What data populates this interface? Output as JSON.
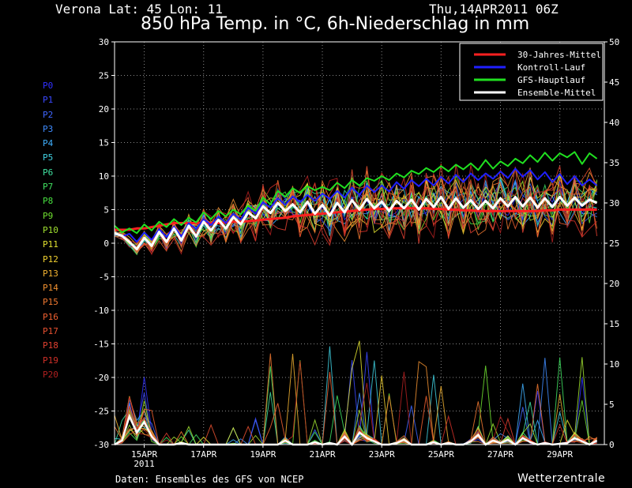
{
  "header": {
    "location": "Verona   Lat: 45 Lon: 11",
    "run": "Thu,14APR2011 06Z",
    "title": "850 hPa Temp. in °C, 6h-Niederschlag in mm"
  },
  "footer": {
    "credit": "Daten: Ensembles des GFS von NCEP",
    "brand": "Wetterzentrale"
  },
  "members": [
    {
      "name": "P0",
      "color": "#3030ff"
    },
    {
      "name": "P1",
      "color": "#3a48ff"
    },
    {
      "name": "P2",
      "color": "#3f66ff"
    },
    {
      "name": "P3",
      "color": "#3f8cff"
    },
    {
      "name": "P4",
      "color": "#3fb0ff"
    },
    {
      "name": "P5",
      "color": "#40d0e0"
    },
    {
      "name": "P6",
      "color": "#40e0a0"
    },
    {
      "name": "P7",
      "color": "#40e060"
    },
    {
      "name": "P8",
      "color": "#48e040"
    },
    {
      "name": "P9",
      "color": "#70e030"
    },
    {
      "name": "P10",
      "color": "#a0e030"
    },
    {
      "name": "P11",
      "color": "#e0e030"
    },
    {
      "name": "P12",
      "color": "#f0d030"
    },
    {
      "name": "P13",
      "color": "#f0b030"
    },
    {
      "name": "P14",
      "color": "#f09030"
    },
    {
      "name": "P15",
      "color": "#f07830"
    },
    {
      "name": "P16",
      "color": "#f06030"
    },
    {
      "name": "P17",
      "color": "#e85030"
    },
    {
      "name": "P18",
      "color": "#e04030"
    },
    {
      "name": "P19",
      "color": "#d03028"
    },
    {
      "name": "P20",
      "color": "#b02020"
    }
  ],
  "chart_data": {
    "type": "line",
    "x_ticks": [
      {
        "label": "15APR",
        "sub": "2011",
        "day": 1
      },
      {
        "label": "17APR",
        "day": 3
      },
      {
        "label": "19APR",
        "day": 5
      },
      {
        "label": "21APR",
        "day": 7
      },
      {
        "label": "23APR",
        "day": 9
      },
      {
        "label": "25APR",
        "day": 11
      },
      {
        "label": "27APR",
        "day": 13
      },
      {
        "label": "29APR",
        "day": 15
      }
    ],
    "x_range_days": [
      0,
      16.5
    ],
    "y_left": {
      "range": [
        -30,
        30
      ],
      "ticks": [
        30,
        25,
        20,
        15,
        10,
        5,
        0,
        -5,
        -10,
        -15,
        -20,
        -25,
        -30
      ]
    },
    "y_right": {
      "range": [
        0,
        50
      ],
      "ticks": [
        50,
        45,
        40,
        35,
        30,
        25,
        20,
        15,
        10,
        5,
        0
      ]
    },
    "grid": true,
    "legend_position": "top-right",
    "legend": [
      {
        "name": "30-Jahres-Mittel",
        "color": "#ff2020"
      },
      {
        "name": "Kontroll-Lauf",
        "color": "#2020ff"
      },
      {
        "name": "GFS-Hauptlauf",
        "color": "#20e020"
      },
      {
        "name": "Ensemble-Mittel",
        "color": "#ffffff"
      }
    ],
    "step_hours": 6,
    "series": [
      {
        "name": "30-Jahres-Mittel",
        "color": "#ff2020",
        "width": 3,
        "values": [
          2,
          2,
          2,
          2.2,
          2.2,
          2.4,
          2.6,
          2.8,
          3,
          3,
          3,
          3,
          3,
          3,
          3,
          3.1,
          3.2,
          3.2,
          3.3,
          3.4,
          3.5,
          3.6,
          3.7,
          3.8,
          4,
          4.1,
          4.2,
          4.3,
          4.4,
          4.5,
          4.6,
          4.7,
          4.8,
          4.9,
          5,
          5.1,
          5.1,
          5.2,
          5.2,
          5.2,
          5.2,
          5.2,
          5.2,
          5.1,
          5.1,
          5.0,
          5.0,
          4.9,
          4.9,
          4.8,
          4.8,
          4.8,
          4.8,
          4.8,
          4.8,
          4.8,
          4.8,
          4.8,
          4.9,
          4.9,
          5.0,
          5.0,
          5.0,
          5.0,
          5.0,
          5.0
        ]
      },
      {
        "name": "GFS-Hauptlauf",
        "color": "#20e020",
        "width": 2,
        "values": [
          2.6,
          1.6,
          2.2,
          1.5,
          2.8,
          1.9,
          3.2,
          2.4,
          3.6,
          2.7,
          3.8,
          3.1,
          4.6,
          3.6,
          4.8,
          4.0,
          5.0,
          4.3,
          5.6,
          4.8,
          6.8,
          5.8,
          7.8,
          6.9,
          8.2,
          7.5,
          8.5,
          7.9,
          8.4,
          7.9,
          9.0,
          8.2,
          9.4,
          8.6,
          9.7,
          9.3,
          10.0,
          9.4,
          10.4,
          9.8,
          10.8,
          10.3,
          11.2,
          10.6,
          11.5,
          10.7,
          11.7,
          11.0,
          11.9,
          10.9,
          12.4,
          11.1,
          12.2,
          11.5,
          12.6,
          11.9,
          13.1,
          12.1,
          13.5,
          12.3,
          13.4,
          12.8,
          13.6,
          11.8,
          13.4,
          12.6
        ]
      },
      {
        "name": "Kontroll-Lauf",
        "color": "#2020ff",
        "width": 2,
        "values": [
          1.5,
          1.0,
          1.4,
          0.2,
          1.6,
          0.5,
          2.1,
          0.9,
          2.5,
          1.0,
          3.0,
          2.1,
          3.6,
          2.7,
          4.0,
          3.0,
          4.4,
          3.5,
          5.3,
          4.4,
          6.1,
          5.3,
          6.7,
          5.7,
          7.0,
          6.1,
          7.2,
          6.3,
          7.4,
          6.6,
          7.8,
          6.8,
          8.3,
          7.2,
          8.6,
          7.6,
          8.6,
          7.7,
          9.1,
          8.1,
          9.4,
          8.5,
          9.6,
          8.6,
          9.9,
          8.9,
          10.2,
          9.1,
          10.4,
          9.4,
          10.4,
          9.6,
          10.7,
          9.7,
          11.1,
          9.9,
          10.9,
          9.5,
          10.6,
          9.1,
          10.3,
          8.8,
          10.0,
          8.6,
          9.5,
          8.6
        ]
      },
      {
        "name": "Ensemble-Mittel",
        "color": "#ffffff",
        "width": 3,
        "values": [
          1.5,
          1.1,
          0.2,
          -0.9,
          0.8,
          -0.4,
          1.7,
          0.2,
          2.2,
          0.4,
          2.6,
          1.0,
          3.2,
          1.9,
          3.5,
          2.2,
          3.9,
          2.8,
          4.6,
          3.7,
          5.5,
          4.5,
          6.0,
          4.8,
          5.8,
          4.6,
          6.2,
          4.4,
          5.7,
          4.1,
          6.0,
          4.6,
          6.4,
          5.0,
          6.6,
          5.2,
          6.2,
          4.8,
          6.3,
          5.2,
          6.5,
          5.0,
          6.6,
          5.4,
          6.9,
          5.1,
          6.7,
          5.3,
          6.4,
          5.1,
          6.3,
          5.2,
          6.7,
          5.5,
          6.9,
          5.5,
          6.8,
          5.3,
          6.7,
          5.4,
          6.9,
          5.6,
          6.8,
          5.6,
          6.5,
          6.0
        ]
      }
    ],
    "precip_series": [
      {
        "name": "Ensemble-Mittel Niederschlag",
        "color": "#ffffff",
        "width": 2.5,
        "values": [
          0,
          0.5,
          3.5,
          1.5,
          2.8,
          1.0,
          0,
          0,
          0,
          0.2,
          0,
          0,
          0,
          0,
          0,
          0,
          0,
          0,
          0,
          0,
          0,
          0,
          0,
          0.5,
          0,
          0,
          0,
          0.3,
          0,
          0.2,
          0,
          1.0,
          0,
          1.5,
          0.8,
          0.4,
          0,
          0,
          0.2,
          0.6,
          0,
          0,
          0,
          0.3,
          0,
          0.2,
          0,
          0,
          0.4,
          1.2,
          0,
          0.5,
          0.2,
          0.6,
          0,
          0.8,
          0.3,
          0,
          0.2,
          0,
          0.1,
          0.2,
          0.8,
          0.4,
          0,
          0.5
        ]
      }
    ]
  }
}
